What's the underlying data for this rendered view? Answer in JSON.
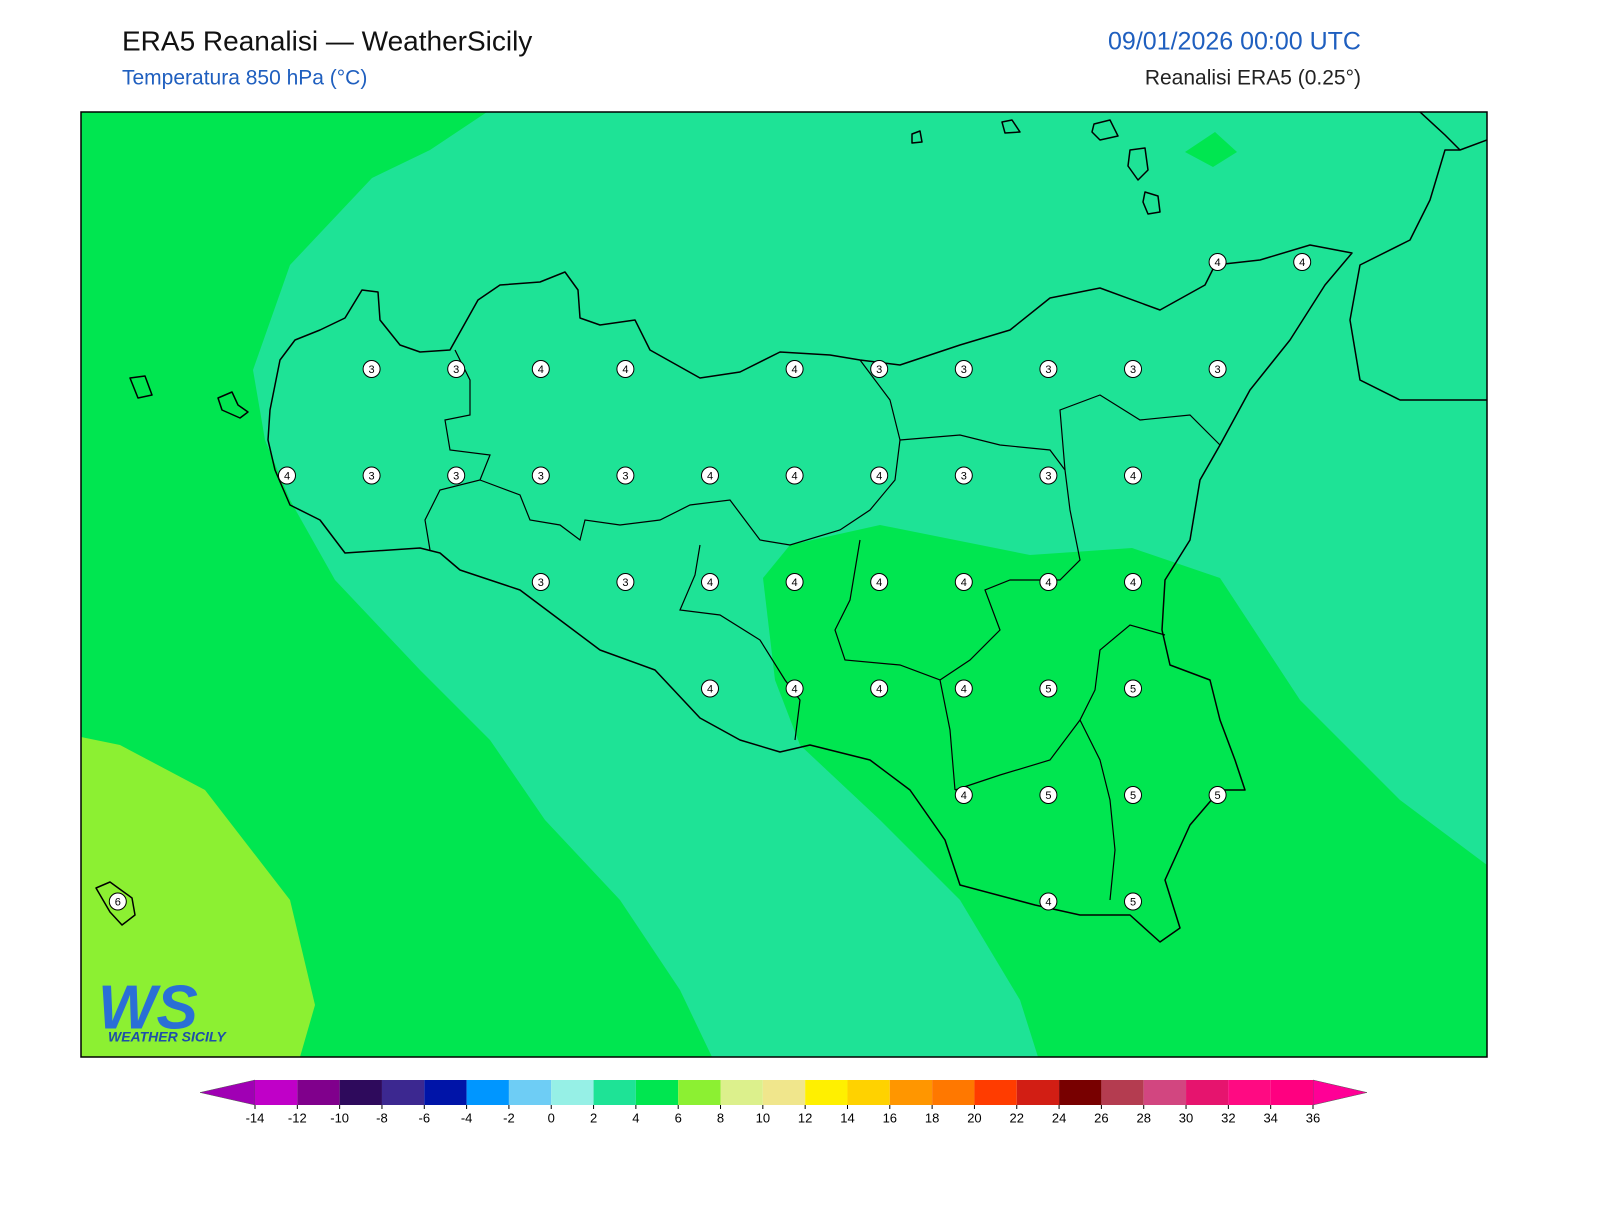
{
  "header": {
    "title": "ERA5 Reanalisi — WeatherSicily",
    "subtitle": "Temperatura 850 hPa (°C)",
    "datetime": "09/01/2026 00:00 UTC",
    "source": "Reanalisi ERA5 (0.25°)"
  },
  "stations": {
    "rows": [
      [
        null,
        null,
        null,
        null,
        null,
        null,
        null,
        null,
        null,
        null,
        null,
        null,
        null,
        4,
        4
      ],
      [
        null,
        null,
        null,
        3,
        3,
        4,
        4,
        null,
        4,
        3,
        3,
        3,
        3,
        3,
        null
      ],
      [
        null,
        null,
        4,
        3,
        3,
        3,
        3,
        4,
        4,
        4,
        3,
        3,
        4,
        null,
        null
      ],
      [
        null,
        null,
        null,
        null,
        null,
        3,
        3,
        4,
        4,
        4,
        4,
        4,
        4,
        null,
        null
      ],
      [
        null,
        null,
        null,
        null,
        null,
        null,
        null,
        4,
        4,
        4,
        4,
        5,
        5,
        null,
        null
      ],
      [
        null,
        null,
        null,
        null,
        null,
        null,
        null,
        null,
        null,
        null,
        4,
        5,
        5,
        5,
        null
      ],
      [
        6,
        null,
        null,
        null,
        null,
        null,
        null,
        null,
        null,
        null,
        null,
        4,
        5,
        null,
        null
      ]
    ]
  },
  "colorbar": {
    "ticks": [
      -14,
      -12,
      -10,
      -8,
      -6,
      -4,
      -2,
      0,
      2,
      4,
      6,
      8,
      10,
      12,
      14,
      16,
      18,
      20,
      22,
      24,
      26,
      28,
      30,
      32,
      34,
      36
    ],
    "colors": [
      "#c000c8",
      "#80008c",
      "#2e0a5c",
      "#3c2890",
      "#0014a8",
      "#0096ff",
      "#6ecdf5",
      "#96f0e6",
      "#1ee396",
      "#00e650",
      "#8cf032",
      "#dcf08c",
      "#f0e68c",
      "#fff000",
      "#ffd200",
      "#ff9600",
      "#ff7800",
      "#ff3c00",
      "#d21e14",
      "#780000",
      "#b43c50",
      "#d24680",
      "#e6146e",
      "#ff0a82",
      "#ff0080"
    ],
    "under_color": "#a000b4",
    "over_color": "#ff0096"
  },
  "logo": {
    "letters": "WS",
    "text": "WEATHER SICILY"
  }
}
